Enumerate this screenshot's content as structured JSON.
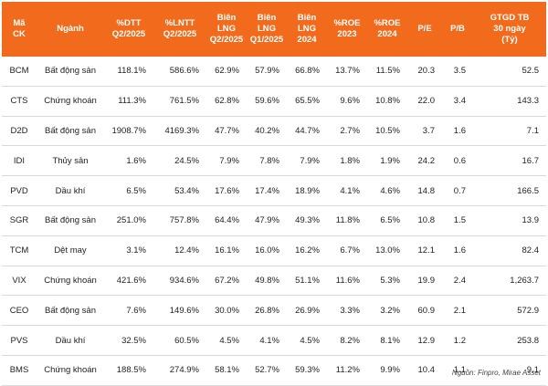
{
  "table": {
    "headers": [
      "Mã\nCK",
      "Ngành",
      "%DTT\nQ2/2025",
      "%LNTT\nQ2/2025",
      "Biên\nLNG\nQ2/2025",
      "Biên\nLNG\nQ1/2025",
      "Biên\nLNG\n2024",
      "%ROE\n2023",
      "%ROE\n2024",
      "P/E",
      "P/B",
      "GTGD TB\n30 ngày\n(Tỷ)"
    ],
    "rows": [
      [
        "BCM",
        "Bất động sản",
        "118.1%",
        "586.6%",
        "62.9%",
        "57.9%",
        "66.8%",
        "13.7%",
        "11.5%",
        "20.3",
        "3.5",
        "52.5"
      ],
      [
        "CTS",
        "Chứng khoán",
        "111.3%",
        "761.5%",
        "62.8%",
        "59.6%",
        "65.5%",
        "9.6%",
        "10.8%",
        "22.0",
        "3.4",
        "143.3"
      ],
      [
        "D2D",
        "Bất động sản",
        "1908.7%",
        "4169.3%",
        "47.7%",
        "40.2%",
        "44.7%",
        "2.7%",
        "10.5%",
        "3.7",
        "1.6",
        "7.1"
      ],
      [
        "IDI",
        "Thủy sản",
        "1.6%",
        "24.5%",
        "7.9%",
        "7.8%",
        "7.9%",
        "1.8%",
        "1.9%",
        "24.2",
        "0.6",
        "16.7"
      ],
      [
        "PVD",
        "Dầu khí",
        "6.5%",
        "53.4%",
        "17.6%",
        "17.4%",
        "18.9%",
        "4.1%",
        "4.6%",
        "14.8",
        "0.7",
        "166.5"
      ],
      [
        "SGR",
        "Bất động sản",
        "251.0%",
        "757.8%",
        "64.4%",
        "47.9%",
        "49.3%",
        "11.8%",
        "6.5%",
        "10.8",
        "1.5",
        "13.9"
      ],
      [
        "TCM",
        "Dệt may",
        "3.1%",
        "12.4%",
        "16.1%",
        "16.0%",
        "16.2%",
        "6.7%",
        "13.0%",
        "12.1",
        "1.6",
        "82.4"
      ],
      [
        "VIX",
        "Chứng khoán",
        "421.6%",
        "934.6%",
        "67.2%",
        "49.8%",
        "51.1%",
        "11.6%",
        "5.3%",
        "19.9",
        "2.4",
        "1,263.7"
      ],
      [
        "CEO",
        "Bất động sản",
        "7.6%",
        "149.6%",
        "30.0%",
        "26.8%",
        "26.9%",
        "3.3%",
        "3.2%",
        "60.9",
        "2.1",
        "572.9"
      ],
      [
        "PVS",
        "Dầu khí",
        "32.5%",
        "60.5%",
        "4.5%",
        "4.1%",
        "4.5%",
        "8.2%",
        "8.1%",
        "12.9",
        "1.2",
        "253.8"
      ],
      [
        "BMS",
        "Chứng khoán",
        "188.5%",
        "274.9%",
        "58.1%",
        "52.7%",
        "59.3%",
        "11.2%",
        "9.9%",
        "10.4",
        "1.1",
        "9.1"
      ]
    ]
  },
  "source_note": "Nguồn: Finpro, Mirae Asset",
  "colors": {
    "header_bg": "#f26b1d",
    "header_text": "#ffffff",
    "row_border": "#d9d9d9"
  }
}
